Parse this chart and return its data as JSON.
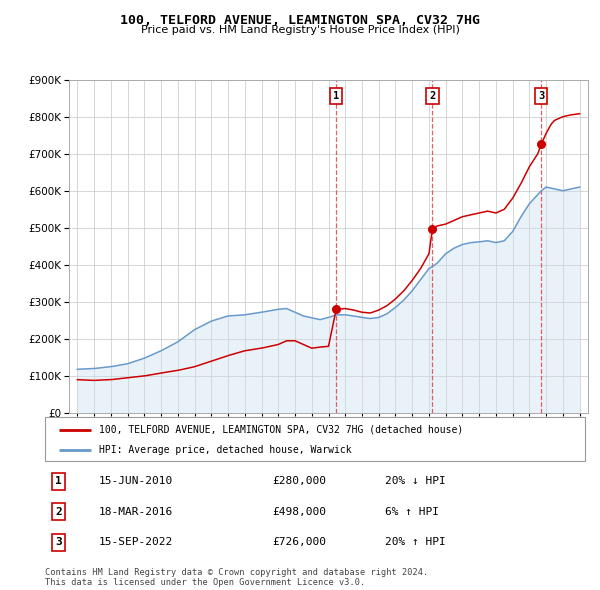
{
  "title": "100, TELFORD AVENUE, LEAMINGTON SPA, CV32 7HG",
  "subtitle": "Price paid vs. HM Land Registry's House Price Index (HPI)",
  "legend_line1": "100, TELFORD AVENUE, LEAMINGTON SPA, CV32 7HG (detached house)",
  "legend_line2": "HPI: Average price, detached house, Warwick",
  "sales": [
    {
      "label": "1",
      "date": "15-JUN-2010",
      "price": 280000,
      "pct": "20%",
      "dir": "↓",
      "x_year": 2010.46
    },
    {
      "label": "2",
      "date": "18-MAR-2016",
      "price": 498000,
      "pct": "6%",
      "dir": "↑",
      "x_year": 2016.21
    },
    {
      "label": "3",
      "date": "15-SEP-2022",
      "price": 726000,
      "pct": "20%",
      "dir": "↑",
      "x_year": 2022.71
    }
  ],
  "property_color": "#cc0000",
  "hpi_color": "#6699cc",
  "hpi_fill_color": "#cce0f0",
  "vline_color": "#dd4444",
  "label_box_edge_color": "#cc0000",
  "background_color": "#ffffff",
  "grid_color": "#cccccc",
  "ylim": [
    0,
    900000
  ],
  "xlim_start": 1994.5,
  "xlim_end": 2025.5,
  "footer": "Contains HM Land Registry data © Crown copyright and database right 2024.\nThis data is licensed under the Open Government Licence v3.0."
}
